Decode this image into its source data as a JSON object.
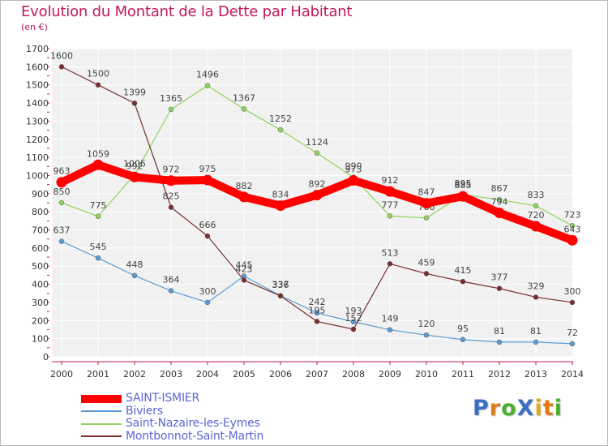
{
  "chart_data": {
    "type": "line",
    "title": "Evolution du Montant de la Dette par Habitant",
    "subtitle": "(en €)",
    "x": [
      2000,
      2001,
      2002,
      2003,
      2004,
      2005,
      2006,
      2007,
      2008,
      2009,
      2010,
      2011,
      2012,
      2013,
      2014
    ],
    "ylim": [
      0,
      1700
    ],
    "yticks": [
      0,
      100,
      200,
      300,
      400,
      500,
      600,
      700,
      800,
      900,
      1000,
      1100,
      1200,
      1300,
      1400,
      1500,
      1600,
      1700
    ],
    "grid": true,
    "legend": "bottom-left",
    "series": [
      {
        "name": "Biviers",
        "color": "#5b9bd5",
        "values": [
          637,
          545,
          448,
          364,
          300,
          445,
          337,
          242,
          193,
          149,
          120,
          95,
          81,
          81,
          72
        ]
      },
      {
        "name": "Saint-Nazaire-les-Eymes",
        "color": "#8fd45e",
        "values": [
          850,
          775,
          1005,
          1365,
          1496,
          1367,
          1252,
          1124,
          990,
          777,
          766,
          895,
          867,
          833,
          723
        ]
      },
      {
        "name": "Montbonnot-Saint-Martin",
        "color": "#7a2e2e",
        "values": [
          1600,
          1500,
          1399,
          825,
          666,
          423,
          336,
          195,
          152,
          513,
          459,
          415,
          377,
          329,
          300
        ]
      },
      {
        "name": "SAINT-ISMIER",
        "color": "#ff0000",
        "emphasis": true,
        "values": [
          963,
          1059,
          992,
          972,
          975,
          882,
          834,
          892,
          973,
          912,
          847,
          885,
          794,
          720,
          643
        ]
      }
    ],
    "legend_order": [
      "SAINT-ISMIER",
      "Biviers",
      "Saint-Nazaire-les-Eymes",
      "Montbonnot-Saint-Martin"
    ]
  },
  "logo": {
    "text": "ProXiti",
    "letters": [
      {
        "ch": "P",
        "color": "#3a6fc4"
      },
      {
        "ch": "r",
        "color": "#e07b1a"
      },
      {
        "ch": "o",
        "color": "#4caf2b"
      },
      {
        "ch": "X",
        "color": "#3a6fc4"
      },
      {
        "ch": "i",
        "color": "#e0a81a"
      },
      {
        "ch": "t",
        "color": "#e07b1a"
      },
      {
        "ch": "i",
        "color": "#4caf2b"
      }
    ]
  }
}
